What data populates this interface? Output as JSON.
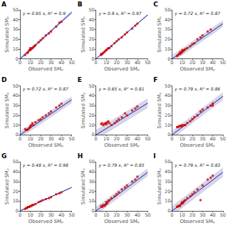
{
  "chart_data": [
    {
      "type": "scatter",
      "title": "A",
      "annotation": "y = 0.95 x, R² = 0.9",
      "xlabel": "Observed SMₚ",
      "ylabel": "Simulated SMₚ",
      "xlim": [
        0,
        50
      ],
      "ylim": [
        0,
        50
      ],
      "xticks": [
        0,
        10,
        20,
        30,
        40,
        50
      ],
      "yticks": [
        0,
        10,
        20,
        30,
        40,
        50
      ],
      "grid": false,
      "series": [
        {
          "type": "band",
          "color": "#8888bb",
          "x": [
            0,
            50
          ],
          "lower": [
            -1.5,
            46
          ],
          "upper": [
            1.5,
            49
          ]
        },
        {
          "type": "line",
          "color": "#1a1aaa",
          "x": [
            0,
            50
          ],
          "values": [
            0,
            47.5
          ]
        },
        {
          "type": "scatter",
          "marker": "square",
          "color": "#cc0000",
          "x": [
            5,
            7,
            8,
            9,
            10,
            10,
            11,
            12,
            13,
            14,
            15,
            18,
            20,
            22,
            25,
            28,
            30,
            35,
            38,
            40
          ],
          "values": [
            4,
            6,
            7,
            9,
            9,
            11,
            10,
            11,
            12,
            13,
            14,
            17,
            19,
            21,
            24,
            26,
            28,
            33,
            37,
            38
          ]
        }
      ]
    },
    {
      "type": "scatter",
      "title": "B",
      "annotation": "y = 0.9 x, R² = 0.97",
      "xlabel": "Observed SMₚ",
      "ylabel": "Simulated SMₚ",
      "xlim": [
        0,
        50
      ],
      "ylim": [
        0,
        50
      ],
      "xticks": [
        0,
        10,
        20,
        30,
        40,
        50
      ],
      "yticks": [
        0,
        10,
        20,
        30,
        40,
        50
      ],
      "grid": false,
      "series": [
        {
          "type": "band",
          "color": "#8888bb",
          "x": [
            0,
            50
          ],
          "lower": [
            -0.8,
            44.2
          ],
          "upper": [
            0.8,
            45.8
          ]
        },
        {
          "type": "line",
          "color": "#1a1aaa",
          "x": [
            0,
            50
          ],
          "values": [
            0,
            45
          ]
        },
        {
          "type": "scatter",
          "marker": "square",
          "color": "#cc0000",
          "x": [
            5,
            6,
            7,
            8,
            9,
            10,
            11,
            12,
            13,
            15,
            18,
            20,
            22,
            25,
            28,
            30,
            35,
            38,
            40,
            5
          ],
          "values": [
            4,
            5,
            6,
            7,
            8,
            9,
            10,
            11,
            11,
            13,
            16,
            18,
            20,
            22,
            25,
            27,
            31,
            34,
            36,
            5
          ]
        }
      ]
    },
    {
      "type": "scatter",
      "title": "C",
      "annotation": "y = 0.72 x, R² = 0.87",
      "xlabel": "Observed SMₚ",
      "ylabel": "Simulated SMₚ",
      "xlim": [
        0,
        50
      ],
      "ylim": [
        0,
        50
      ],
      "xticks": [
        0,
        10,
        20,
        30,
        40,
        50
      ],
      "yticks": [
        0,
        10,
        20,
        30,
        40,
        50
      ],
      "grid": false,
      "series": [
        {
          "type": "band",
          "color": "#8888bb",
          "x": [
            0,
            50
          ],
          "lower": [
            -3.5,
            32.5
          ],
          "upper": [
            3.5,
            39.5
          ]
        },
        {
          "type": "line",
          "color": "#1a1aaa",
          "x": [
            0,
            50
          ],
          "values": [
            0,
            36
          ]
        },
        {
          "type": "scatter",
          "marker": "square",
          "color": "#cc0000",
          "x": [
            5,
            6,
            7,
            8,
            8,
            9,
            10,
            10,
            11,
            12,
            13,
            15,
            18,
            20,
            22,
            25,
            28,
            30,
            35,
            38
          ],
          "values": [
            3,
            4,
            5,
            5,
            7,
            6,
            7,
            9,
            8,
            9,
            10,
            11,
            13,
            15,
            16,
            20,
            22,
            24,
            28,
            30
          ]
        }
      ]
    },
    {
      "type": "scatter",
      "title": "D",
      "annotation": "y = 0.72 x, R² = 0.87",
      "xlabel": "Observed SMₚ",
      "ylabel": "Simulated SMₚ",
      "xlim": [
        0,
        50
      ],
      "ylim": [
        0,
        50
      ],
      "xticks": [
        0,
        10,
        20,
        30,
        40,
        50
      ],
      "yticks": [
        0,
        10,
        20,
        30,
        40,
        50
      ],
      "grid": false,
      "series": [
        {
          "type": "band",
          "color": "#8888bb",
          "x": [
            0,
            50
          ],
          "lower": [
            -3.5,
            32.5
          ],
          "upper": [
            3.5,
            39.5
          ]
        },
        {
          "type": "line",
          "color": "#1a1aaa",
          "x": [
            0,
            50
          ],
          "values": [
            0,
            36
          ]
        },
        {
          "type": "scatter",
          "marker": "square",
          "color": "#cc0000",
          "x": [
            5,
            6,
            7,
            8,
            9,
            10,
            10,
            11,
            12,
            13,
            15,
            18,
            20,
            22,
            25,
            28,
            30,
            35,
            38,
            40
          ],
          "values": [
            6,
            5,
            5,
            6,
            7,
            9,
            8,
            10,
            12,
            10,
            13,
            15,
            16,
            18,
            20,
            22,
            24,
            28,
            30,
            32
          ]
        }
      ]
    },
    {
      "type": "scatter",
      "title": "E",
      "annotation": "y = 0.65 x, R² = 0.81",
      "xlabel": "Observed SMₚ",
      "ylabel": "Simulated SMₚ",
      "xlim": [
        0,
        50
      ],
      "ylim": [
        0,
        50
      ],
      "xticks": [
        0,
        10,
        20,
        30,
        40,
        50
      ],
      "yticks": [
        0,
        10,
        20,
        30,
        40,
        50
      ],
      "grid": false,
      "series": [
        {
          "type": "band",
          "color": "#8888bb",
          "x": [
            0,
            50
          ],
          "lower": [
            -5,
            27.5
          ],
          "upper": [
            5,
            37.5
          ]
        },
        {
          "type": "line",
          "color": "#1a1aaa",
          "x": [
            0,
            50
          ],
          "values": [
            0,
            32.5
          ]
        },
        {
          "type": "scatter",
          "marker": "square",
          "color": "#cc0000",
          "x": [
            5,
            6,
            7,
            8,
            9,
            10,
            10,
            11,
            12,
            13,
            15,
            18,
            20,
            22,
            25,
            28,
            30,
            35,
            38,
            40
          ],
          "values": [
            11,
            12,
            10,
            11,
            12,
            11,
            12,
            13,
            14,
            12,
            10,
            12,
            14,
            16,
            18,
            22,
            20,
            25,
            27,
            29
          ]
        }
      ]
    },
    {
      "type": "scatter",
      "title": "F",
      "annotation": "y = 0.79 x, R² = 0.86",
      "xlabel": "Observed SMₚ",
      "ylabel": "Simulated SMₚ",
      "xlim": [
        0,
        50
      ],
      "ylim": [
        0,
        50
      ],
      "xticks": [
        0,
        10,
        20,
        30,
        40,
        50
      ],
      "yticks": [
        0,
        10,
        20,
        30,
        40,
        50
      ],
      "grid": false,
      "series": [
        {
          "type": "band",
          "color": "#8888bb",
          "x": [
            0,
            50
          ],
          "lower": [
            -4,
            35.5
          ],
          "upper": [
            4,
            43.5
          ]
        },
        {
          "type": "line",
          "color": "#1a1aaa",
          "x": [
            0,
            50
          ],
          "values": [
            0,
            39.5
          ]
        },
        {
          "type": "scatter",
          "marker": "square",
          "color": "#cc0000",
          "x": [
            5,
            6,
            7,
            8,
            9,
            10,
            10,
            12,
            13,
            15,
            18,
            20,
            22,
            25,
            28,
            30,
            35,
            38,
            40,
            40
          ],
          "values": [
            8,
            8,
            9,
            9,
            9,
            9,
            10,
            10,
            10,
            12,
            14,
            16,
            18,
            20,
            24,
            26,
            28,
            30,
            32,
            30
          ]
        }
      ]
    },
    {
      "type": "scatter",
      "title": "G",
      "annotation": "y = 0.48 x, R² = 0.98",
      "xlabel": "Observed SMₚ",
      "ylabel": "Simulated SMₚ",
      "xlim": [
        0,
        50
      ],
      "ylim": [
        0,
        50
      ],
      "xticks": [
        0,
        10,
        20,
        30,
        40,
        50
      ],
      "yticks": [
        0,
        10,
        20,
        30,
        40,
        50
      ],
      "grid": false,
      "series": [
        {
          "type": "band",
          "color": "#8888bb",
          "x": [
            0,
            50
          ],
          "lower": [
            -0.5,
            23.5
          ],
          "upper": [
            0.5,
            24.5
          ]
        },
        {
          "type": "line",
          "color": "#1a1aaa",
          "x": [
            0,
            50
          ],
          "values": [
            0,
            24
          ]
        },
        {
          "type": "scatter",
          "marker": "square",
          "color": "#cc0000",
          "x": [
            5,
            6,
            7,
            8,
            9,
            10,
            11,
            12,
            13,
            15,
            18,
            20,
            22,
            25,
            28,
            30,
            35,
            38,
            40,
            8
          ],
          "values": [
            2,
            3,
            3,
            4,
            4,
            5,
            5,
            6,
            6,
            7,
            9,
            10,
            11,
            12,
            13,
            14,
            17,
            18,
            19,
            4
          ]
        }
      ]
    },
    {
      "type": "scatter",
      "title": "H",
      "annotation": "y = 0.79 x, R² = 0.85",
      "xlabel": "Observed SMₚ",
      "ylabel": "Simulated SMₚ",
      "xlim": [
        0,
        50
      ],
      "ylim": [
        0,
        50
      ],
      "xticks": [
        0,
        10,
        20,
        30,
        40,
        50
      ],
      "yticks": [
        0,
        10,
        20,
        30,
        40,
        50
      ],
      "grid": false,
      "series": [
        {
          "type": "band",
          "color": "#8888bb",
          "x": [
            0,
            50
          ],
          "lower": [
            -4,
            35.5
          ],
          "upper": [
            4,
            43.5
          ]
        },
        {
          "type": "line",
          "color": "#1a1aaa",
          "x": [
            0,
            50
          ],
          "values": [
            0,
            39.5
          ]
        },
        {
          "type": "scatter",
          "marker": "square",
          "color": "#cc0000",
          "x": [
            5,
            6,
            7,
            8,
            9,
            10,
            10,
            11,
            12,
            13,
            15,
            18,
            20,
            22,
            25,
            28,
            30,
            35,
            38,
            40
          ],
          "values": [
            5,
            4,
            6,
            5,
            6,
            7,
            9,
            8,
            10,
            11,
            13,
            15,
            17,
            19,
            22,
            24,
            26,
            30,
            32,
            35
          ]
        }
      ]
    },
    {
      "type": "scatter",
      "title": "I",
      "annotation": "y = 0.79 x, R² = 0.83",
      "xlabel": "Observed SMₚ",
      "ylabel": "Simulated SMₚ",
      "xlim": [
        0,
        50
      ],
      "ylim": [
        0,
        50
      ],
      "xticks": [
        0,
        10,
        20,
        30,
        40,
        50
      ],
      "yticks": [
        0,
        10,
        20,
        30,
        40,
        50
      ],
      "grid": false,
      "series": [
        {
          "type": "band",
          "color": "#8888bb",
          "x": [
            0,
            50
          ],
          "lower": [
            -5,
            34.5
          ],
          "upper": [
            5,
            44.5
          ]
        },
        {
          "type": "line",
          "color": "#1a1aaa",
          "x": [
            0,
            50
          ],
          "values": [
            0,
            39.5
          ]
        },
        {
          "type": "scatter",
          "marker": "square",
          "color": "#cc0000",
          "x": [
            5,
            6,
            7,
            8,
            9,
            10,
            10,
            11,
            12,
            13,
            15,
            18,
            20,
            22,
            25,
            28,
            30,
            35,
            38,
            40
          ],
          "values": [
            4,
            5,
            5,
            5,
            7,
            8,
            9,
            8,
            10,
            11,
            13,
            15,
            17,
            19,
            22,
            11,
            26,
            32,
            34,
            36
          ]
        }
      ]
    }
  ]
}
